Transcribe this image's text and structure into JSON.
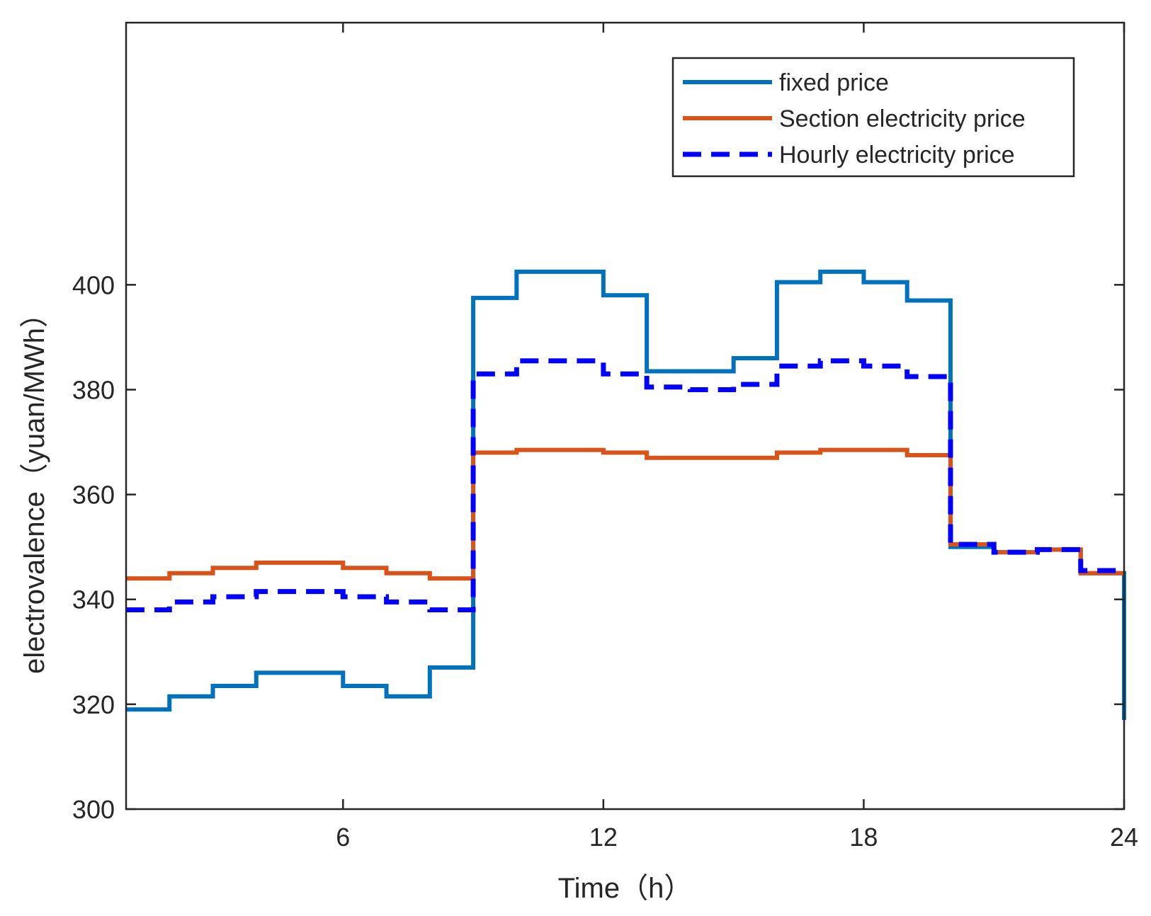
{
  "chart_data": {
    "type": "line",
    "title": "",
    "xlabel": "Time（h）",
    "ylabel": "electrovalence（yuan/MWh）",
    "xlim": [
      1,
      24
    ],
    "ylim": [
      300,
      450
    ],
    "xticks": [
      6,
      12,
      18,
      24
    ],
    "xtick_labels": [
      "6",
      "12",
      "18",
      "24"
    ],
    "yticks": [
      300,
      320,
      340,
      360,
      380,
      400
    ],
    "ytick_labels": [
      "300",
      "320",
      "340",
      "360",
      "380",
      "400"
    ],
    "grid": false,
    "legend_position": "top-right",
    "x": [
      1,
      2,
      3,
      4,
      5,
      6,
      7,
      8,
      9,
      10,
      11,
      12,
      13,
      14,
      15,
      16,
      17,
      18,
      19,
      20,
      21,
      22,
      23,
      24
    ],
    "series": [
      {
        "name": "fixed price",
        "color": "#0072BD",
        "style": "solid",
        "values": [
          319,
          321.5,
          323.5,
          326,
          326,
          323.5,
          321.5,
          327,
          397.5,
          402.5,
          402.5,
          398,
          383.5,
          383.5,
          386,
          400.5,
          402.5,
          400.5,
          397,
          350,
          349,
          349.5,
          345,
          317
        ]
      },
      {
        "name": "Section electricity price",
        "color": "#D95319",
        "style": "solid",
        "values": [
          344,
          345,
          346,
          347,
          347,
          346,
          345,
          344,
          368,
          368.5,
          368.5,
          368,
          367,
          367,
          367,
          368,
          368.5,
          368.5,
          367.5,
          350.5,
          349,
          349.5,
          345,
          345
        ]
      },
      {
        "name": "Hourly electricity price",
        "color": "#0000FF",
        "style": "dashed",
        "values": [
          338,
          339.5,
          340.5,
          341.5,
          341.5,
          340.5,
          339.5,
          338,
          383,
          385.5,
          385.5,
          383,
          380.5,
          380,
          381,
          384.5,
          385.5,
          384.5,
          382.5,
          350.5,
          349,
          349.5,
          345.5,
          345.5
        ]
      }
    ]
  }
}
